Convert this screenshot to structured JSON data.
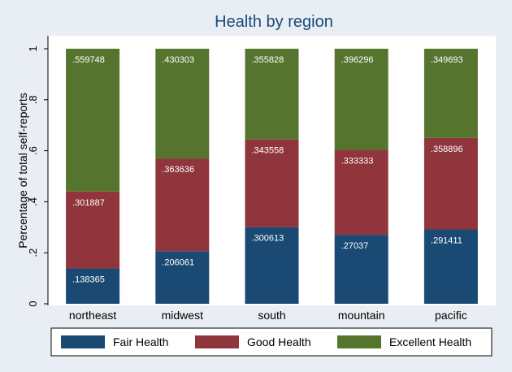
{
  "chart_data": {
    "type": "bar",
    "stacked": true,
    "title": "Health by region",
    "xlabel": "",
    "ylabel": "Percentage of total self-reports",
    "ylim": [
      0,
      1
    ],
    "yticks": [
      {
        "value": 0,
        "label": "0"
      },
      {
        "value": 0.2,
        "label": ".2"
      },
      {
        "value": 0.4,
        "label": ".4"
      },
      {
        "value": 0.6,
        "label": ".6"
      },
      {
        "value": 0.8,
        "label": ".8"
      },
      {
        "value": 1,
        "label": "1"
      }
    ],
    "grid": false,
    "legend_position": "bottom",
    "categories": [
      "northeast",
      "midwest",
      "south",
      "mountain",
      "pacific"
    ],
    "series": [
      {
        "name": "Fair Health",
        "color": "#1a4a73",
        "values": [
          0.138365,
          0.206061,
          0.300613,
          0.27037,
          0.291411
        ],
        "labels": [
          ".138365",
          ".206061",
          ".300613",
          ".27037",
          ".291411"
        ]
      },
      {
        "name": "Good Health",
        "color": "#90353b",
        "values": [
          0.301887,
          0.363636,
          0.343558,
          0.333333,
          0.358896
        ],
        "labels": [
          ".301887",
          ".363636",
          ".343558",
          ".333333",
          ".358896"
        ]
      },
      {
        "name": "Excellent Health",
        "color": "#55752f",
        "values": [
          0.559748,
          0.430303,
          0.355828,
          0.396296,
          0.349693
        ],
        "labels": [
          ".559748",
          ".430303",
          ".355828",
          ".396296",
          ".349693"
        ]
      }
    ]
  }
}
